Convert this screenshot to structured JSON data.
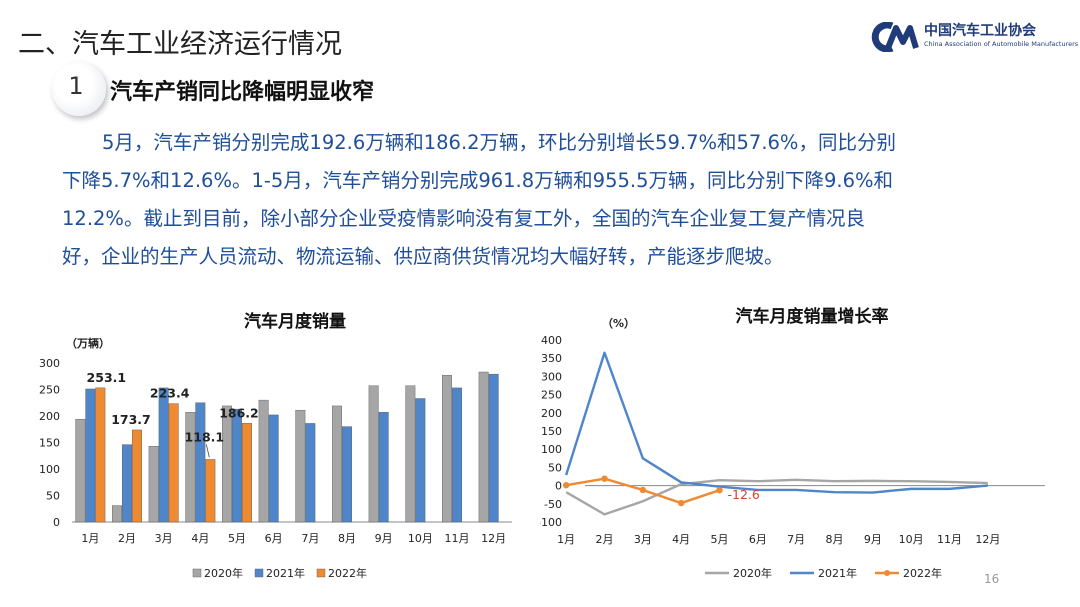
{
  "header": {
    "section_title": "二、汽车工业经济运行情况",
    "logo_cn": "中国汽车工业协会",
    "logo_en": "China Association of Automobile Manufacturers",
    "logo_mark": "CM"
  },
  "subheading": {
    "number": "1",
    "title": "汽车产销同比降幅明显收窄"
  },
  "paragraph_lines": [
    "5月，汽车产销分别完成192.6万辆和186.2万辆，环比分别增长59.7%和57.6%，同比分别",
    "下降5.7%和12.6%。1-5月，汽车产销分别完成961.8万辆和955.5万辆，同比分别下降9.6%和",
    "12.2%。截止到目前，除小部分企业受疫情影响没有复工外，全国的汽车企业复工复产情况良",
    "好，企业的生产人员流动、物流运输、供应商供货情况均大幅好转，产能逐步爬坡。"
  ],
  "page_number": "16",
  "colors": {
    "series_2020": "#a6a6a6",
    "series_2021": "#4e86c9",
    "series_2022": "#ee8a32",
    "text_blue": "#1f4e9a"
  },
  "chart_data": [
    {
      "type": "bar",
      "title": "汽车月度销量",
      "ylabel": "（万辆）",
      "ylim": [
        0,
        300
      ],
      "yticks": [
        0,
        50,
        100,
        150,
        200,
        250,
        300
      ],
      "categories": [
        "1月",
        "2月",
        "3月",
        "4月",
        "5月",
        "6月",
        "7月",
        "8月",
        "9月",
        "10月",
        "11月",
        "12月"
      ],
      "series": [
        {
          "name": "2020年",
          "color": "#a6a6a6",
          "values": [
            194,
            31,
            143,
            207,
            219,
            230,
            211,
            219,
            257,
            257,
            277,
            283
          ]
        },
        {
          "name": "2021年",
          "color": "#4e86c9",
          "values": [
            251,
            146,
            253,
            225,
            213,
            202,
            186,
            180,
            207,
            233,
            253,
            279
          ]
        },
        {
          "name": "2022年",
          "color": "#ee8a32",
          "values": [
            253.1,
            173.7,
            223.4,
            118.1,
            186.2,
            null,
            null,
            null,
            null,
            null,
            null,
            null
          ]
        }
      ],
      "data_labels": [
        "253.1",
        "173.7",
        "223.4",
        "118.1",
        "186.2"
      ],
      "legend_position": "bottom"
    },
    {
      "type": "line",
      "title": "汽车月度销量增长率",
      "ylabel": "（%）",
      "ylim": [
        -100,
        400
      ],
      "yticks": [
        -100,
        -50,
        0,
        50,
        100,
        150,
        200,
        250,
        300,
        350,
        400
      ],
      "categories": [
        "1月",
        "2月",
        "3月",
        "4月",
        "5月",
        "6月",
        "7月",
        "8月",
        "9月",
        "10月",
        "11月",
        "12月"
      ],
      "series": [
        {
          "name": "2020年",
          "color": "#a6a6a6",
          "values": [
            -18,
            -79,
            -43,
            4,
            15,
            12,
            16,
            12,
            13,
            12,
            10,
            7
          ]
        },
        {
          "name": "2021年",
          "color": "#4e86c9",
          "values": [
            29,
            365,
            75,
            9,
            -3,
            -12,
            -12,
            -18,
            -19,
            -9,
            -9,
            0
          ]
        },
        {
          "name": "2022年",
          "color": "#ee8a32",
          "values": [
            1,
            19,
            -12,
            -48,
            -12.6,
            null,
            null,
            null,
            null,
            null,
            null,
            null
          ]
        }
      ],
      "data_labels": [
        "-12.6"
      ],
      "legend_position": "bottom"
    }
  ]
}
